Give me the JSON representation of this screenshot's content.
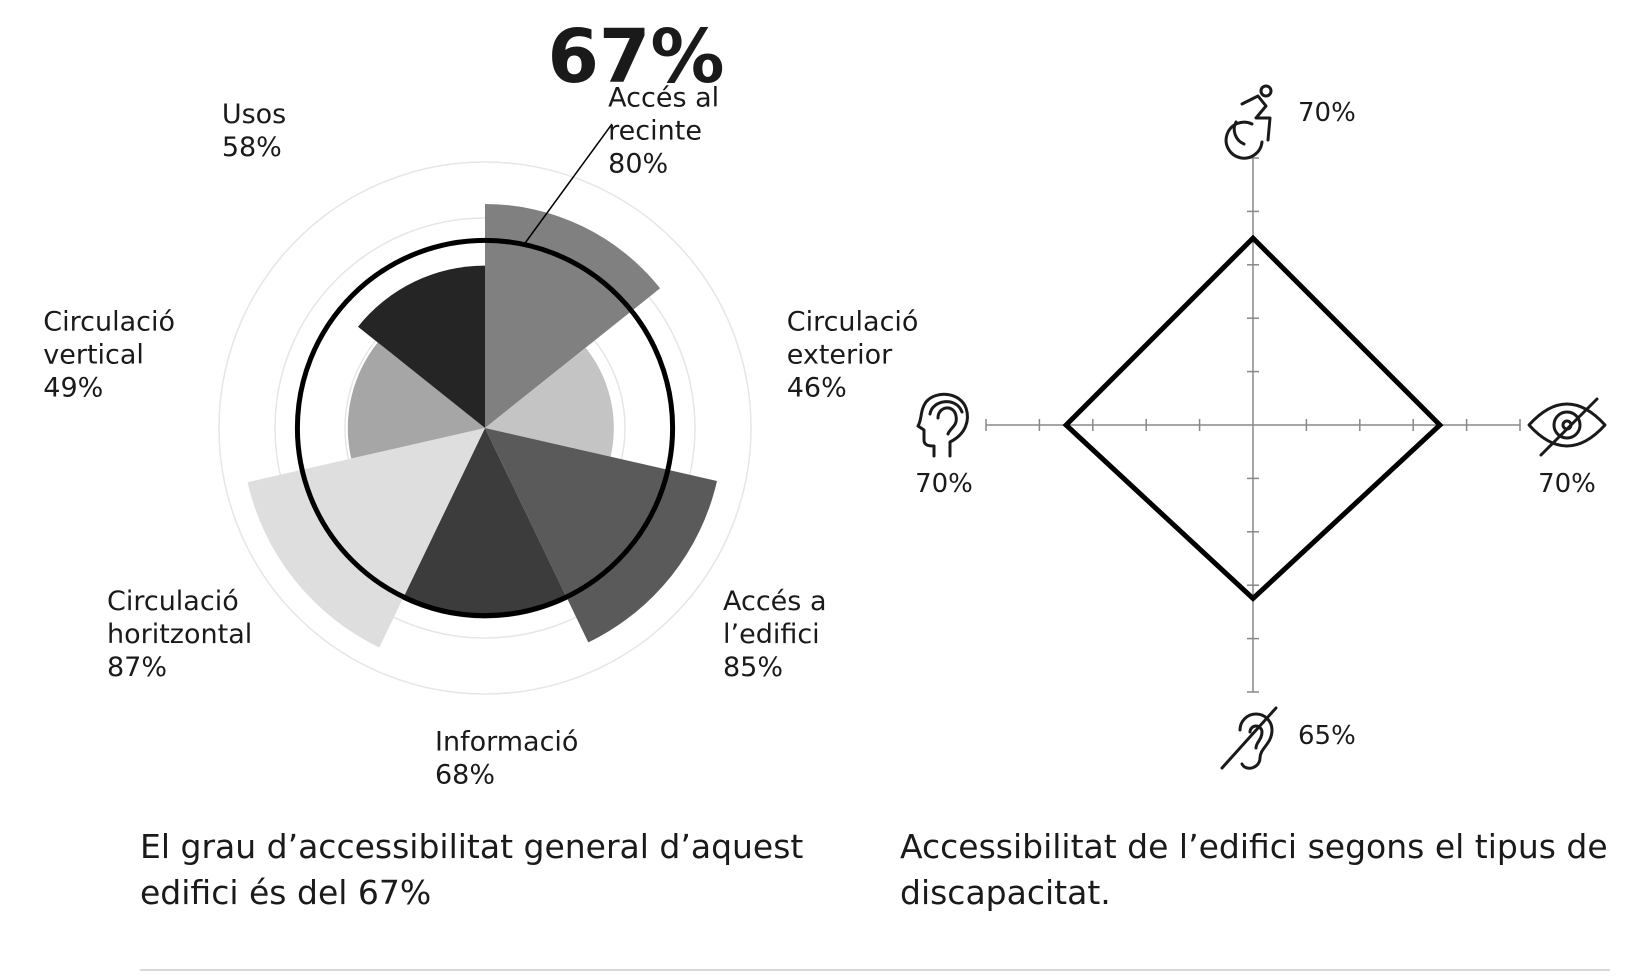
{
  "chart_data": [
    {
      "type": "polar-area",
      "title": "67%",
      "overall_value": 67,
      "categories": [
        {
          "label_lines": [
            "Accés al",
            "recinte"
          ],
          "value_text": "80%",
          "value": 80,
          "color": "#808080"
        },
        {
          "label_lines": [
            "Circulació",
            "exterior"
          ],
          "value_text": "46%",
          "value": 46,
          "color": "#c4c4c4"
        },
        {
          "label_lines": [
            "Accés a",
            "l’edifici"
          ],
          "value_text": "85%",
          "value": 85,
          "color": "#5a5a5a"
        },
        {
          "label_lines": [
            "Informació"
          ],
          "value_text": "68%",
          "value": 68,
          "color": "#3c3c3c"
        },
        {
          "label_lines": [
            "Circulació",
            "horitzontal"
          ],
          "value_text": "87%",
          "value": 87,
          "color": "#dedede"
        },
        {
          "label_lines": [
            "Circulació",
            "vertical"
          ],
          "value_text": "49%",
          "value": 49,
          "color": "#a6a6a6"
        },
        {
          "label_lines": [
            "Usos"
          ],
          "value_text": "58%",
          "value": 58,
          "color": "#252525"
        }
      ]
    },
    {
      "type": "radar",
      "axes": [
        {
          "icon": "wheelchair-icon",
          "label": "70%",
          "value": 70,
          "direction": "top"
        },
        {
          "icon": "eye-slash-icon",
          "label": "70%",
          "value": 70,
          "direction": "right"
        },
        {
          "icon": "ear-slash-icon",
          "label": "65%",
          "value": 65,
          "direction": "bottom"
        },
        {
          "icon": "head-brain-icon",
          "label": "70%",
          "value": 70,
          "direction": "left"
        }
      ],
      "scale_max": 100,
      "grid": "ticks"
    }
  ],
  "captions": {
    "left": "El grau d’accessibilitat general d’aquest edifici és del 67%",
    "right": "Accessibilitat de l’edifici segons el tipus de discapacitat."
  },
  "colors": {
    "text": "#1a1a1a",
    "outline": "#000000",
    "axis": "#888888"
  }
}
